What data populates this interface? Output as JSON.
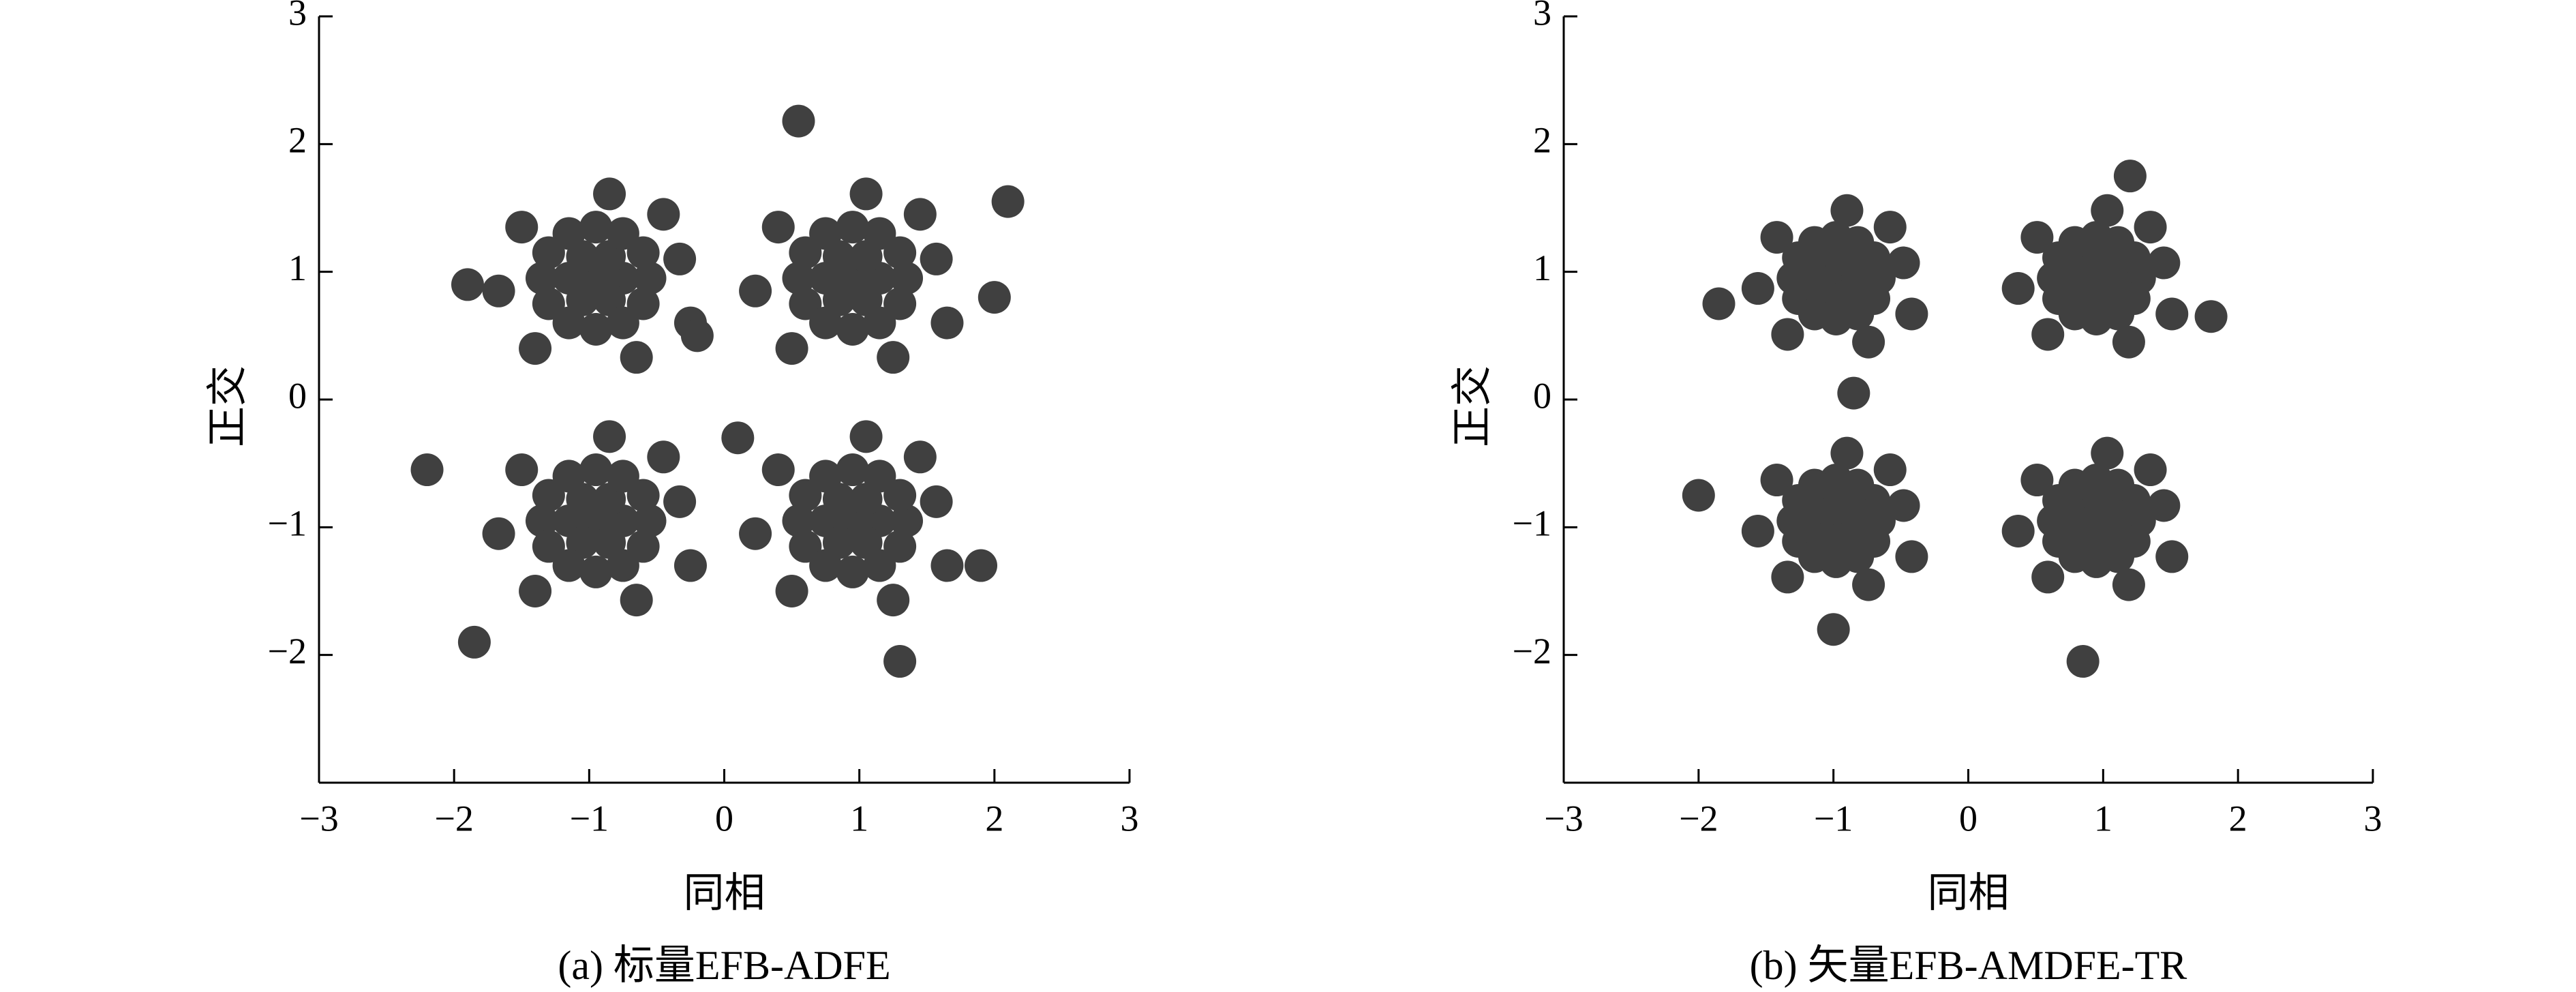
{
  "chart_data": [
    {
      "type": "scatter",
      "xlabel": "同相",
      "ylabel": "正交",
      "caption": "(a) 标量EFB-ADFE",
      "xlim": [
        -3,
        3
      ],
      "ylim": [
        -3,
        3
      ],
      "xticks": [
        {
          "value": -3,
          "label": "−3"
        },
        {
          "value": -2,
          "label": "−2"
        },
        {
          "value": -1,
          "label": "−1"
        },
        0,
        1,
        2,
        3
      ],
      "yticks": [
        {
          "value": -2,
          "label": "−2"
        },
        {
          "value": -1,
          "label": "−1"
        },
        0,
        1,
        2,
        3
      ],
      "series": [
        {
          "color": "#404040",
          "x": [
            -0.95,
            -0.75,
            -0.85,
            -1.05,
            -1.15,
            -1.05,
            -0.85,
            -0.55,
            -0.6,
            -0.75,
            -0.95,
            -1.15,
            -1.3,
            -1.35,
            -1.3,
            -1.15,
            -0.95,
            -0.75,
            -0.6,
            -0.33,
            -1.5,
            -0.65,
            -1.4,
            -0.85,
            -0.25,
            -1.67,
            -0.45,
            0.95,
            1.15,
            1.05,
            0.85,
            0.75,
            0.85,
            1.05,
            1.35,
            1.3,
            1.15,
            0.95,
            0.75,
            0.6,
            0.55,
            0.6,
            0.75,
            0.95,
            1.15,
            1.3,
            1.57,
            0.4,
            1.25,
            0.5,
            1.05,
            1.65,
            0.23,
            1.45,
            -0.95,
            -0.75,
            -0.85,
            -1.05,
            -1.15,
            -1.05,
            -0.85,
            -0.55,
            -0.6,
            -0.75,
            -0.95,
            -1.15,
            -1.3,
            -1.35,
            -1.3,
            -1.15,
            -0.95,
            -0.75,
            -0.6,
            -0.33,
            -1.5,
            -0.65,
            -1.4,
            -0.85,
            -0.25,
            -1.67,
            -0.45,
            0.95,
            1.15,
            1.05,
            0.85,
            0.75,
            0.85,
            1.05,
            1.35,
            1.3,
            1.15,
            0.95,
            0.75,
            0.6,
            0.55,
            0.6,
            0.75,
            0.95,
            1.15,
            1.3,
            1.57,
            0.4,
            1.25,
            0.5,
            1.05,
            1.65,
            0.23,
            1.45,
            -2.2,
            -1.85,
            0.55,
            2.1,
            1.3,
            0.1,
            -0.2,
            2.0,
            -1.9,
            1.9
          ],
          "values": [
            0.95,
            0.95,
            1.12,
            1.12,
            0.95,
            0.78,
            0.78,
            0.95,
            1.15,
            1.3,
            1.35,
            1.3,
            1.15,
            0.95,
            0.75,
            0.6,
            0.55,
            0.6,
            0.75,
            1.1,
            1.35,
            0.33,
            0.4,
            1.61,
            0.6,
            0.85,
            1.45,
            0.95,
            0.95,
            1.12,
            1.12,
            0.95,
            0.78,
            0.78,
            0.95,
            1.15,
            1.3,
            1.35,
            1.3,
            1.15,
            0.95,
            0.75,
            0.6,
            0.55,
            0.6,
            0.75,
            1.1,
            1.35,
            0.33,
            0.4,
            1.61,
            0.6,
            0.85,
            1.45,
            -0.95,
            -0.95,
            -0.78,
            -0.78,
            -0.95,
            -1.12,
            -1.12,
            -0.95,
            -0.75,
            -0.6,
            -0.55,
            -0.6,
            -0.75,
            -0.95,
            -1.15,
            -1.3,
            -1.35,
            -1.3,
            -1.15,
            -0.8,
            -0.55,
            -1.57,
            -1.5,
            -0.29,
            -1.3,
            -1.05,
            -0.45,
            -0.95,
            -0.95,
            -0.78,
            -0.78,
            -0.95,
            -1.12,
            -1.12,
            -0.95,
            -0.75,
            -0.6,
            -0.55,
            -0.6,
            -0.75,
            -0.95,
            -1.15,
            -1.3,
            -1.35,
            -1.3,
            -1.15,
            -0.8,
            -0.55,
            -1.57,
            -1.5,
            -0.29,
            -1.3,
            -1.05,
            -0.45,
            -0.55,
            -1.9,
            2.18,
            1.55,
            -2.05,
            -0.3,
            0.5,
            0.8,
            0.9,
            -1.3
          ]
        }
      ]
    },
    {
      "type": "scatter",
      "xlabel": "同相",
      "ylabel": "正交",
      "caption": "(b) 矢量EFB-AMDFE-TR",
      "xlim": [
        -3,
        3
      ],
      "ylim": [
        -3,
        3
      ],
      "xticks": [
        {
          "value": -3,
          "label": "−3"
        },
        {
          "value": -2,
          "label": "−2"
        },
        {
          "value": -1,
          "label": "−1"
        },
        0,
        1,
        2,
        3
      ],
      "yticks": [
        {
          "value": -2,
          "label": "−2"
        },
        {
          "value": -1,
          "label": "−1"
        },
        0,
        1,
        2,
        3
      ],
      "series": [
        {
          "color": "#404040",
          "x": [
            -0.98,
            -0.82,
            -0.9,
            -1.06,
            -1.14,
            -1.06,
            -0.9,
            -0.66,
            -0.7,
            -0.82,
            -0.98,
            -1.14,
            -1.26,
            -1.3,
            -1.26,
            -1.14,
            -0.98,
            -0.82,
            -0.7,
            -0.48,
            -1.42,
            -0.74,
            -1.34,
            -0.9,
            -0.42,
            -1.56,
            -0.58,
            0.95,
            1.11,
            1.03,
            0.87,
            0.79,
            0.87,
            1.03,
            1.27,
            1.23,
            1.11,
            0.95,
            0.79,
            0.67,
            0.63,
            0.67,
            0.79,
            0.95,
            1.11,
            1.23,
            1.45,
            0.51,
            1.19,
            0.59,
            1.03,
            1.51,
            0.37,
            1.35,
            -0.98,
            -0.82,
            -0.9,
            -1.06,
            -1.14,
            -1.06,
            -0.9,
            -0.66,
            -0.7,
            -0.82,
            -0.98,
            -1.14,
            -1.26,
            -1.3,
            -1.26,
            -1.14,
            -0.98,
            -0.82,
            -0.7,
            -0.48,
            -1.42,
            -0.74,
            -1.34,
            -0.9,
            -0.42,
            -1.56,
            -0.58,
            0.95,
            1.11,
            1.03,
            0.87,
            0.79,
            0.87,
            1.03,
            1.27,
            1.23,
            1.11,
            0.95,
            0.79,
            0.67,
            0.63,
            0.67,
            0.79,
            0.95,
            1.11,
            1.23,
            1.45,
            0.51,
            1.19,
            0.59,
            1.03,
            1.51,
            0.37,
            1.35,
            -2.0,
            0.85,
            -1.85,
            1.8,
            -1.0,
            1.2,
            -0.85
          ],
          "values": [
            0.95,
            0.95,
            1.09,
            1.09,
            0.95,
            0.81,
            0.81,
            0.95,
            1.11,
            1.23,
            1.27,
            1.23,
            1.11,
            0.95,
            0.79,
            0.67,
            0.63,
            0.67,
            0.79,
            1.07,
            1.27,
            0.45,
            0.51,
            1.48,
            0.67,
            0.87,
            1.35,
            0.95,
            0.95,
            1.09,
            1.09,
            0.95,
            0.81,
            0.81,
            0.95,
            1.11,
            1.23,
            1.27,
            1.23,
            1.11,
            0.95,
            0.79,
            0.67,
            0.63,
            0.67,
            0.79,
            1.07,
            1.27,
            0.45,
            0.51,
            1.48,
            0.67,
            0.87,
            1.35,
            -0.95,
            -0.95,
            -0.81,
            -0.81,
            -0.95,
            -1.09,
            -1.09,
            -0.95,
            -0.79,
            -0.67,
            -0.63,
            -0.67,
            -0.79,
            -0.95,
            -1.11,
            -1.23,
            -1.27,
            -1.23,
            -1.11,
            -0.83,
            -0.63,
            -1.45,
            -1.39,
            -0.42,
            -1.23,
            -1.03,
            -0.55,
            -0.95,
            -0.95,
            -0.81,
            -0.81,
            -0.95,
            -1.09,
            -1.09,
            -0.95,
            -0.79,
            -0.67,
            -0.63,
            -0.67,
            -0.79,
            -0.95,
            -1.11,
            -1.23,
            -1.27,
            -1.23,
            -1.11,
            -0.83,
            -0.63,
            -1.45,
            -1.39,
            -0.42,
            -1.23,
            -1.03,
            -0.55,
            -0.75,
            -2.05,
            0.75,
            0.65,
            -1.8,
            1.75,
            0.05
          ]
        }
      ]
    }
  ]
}
